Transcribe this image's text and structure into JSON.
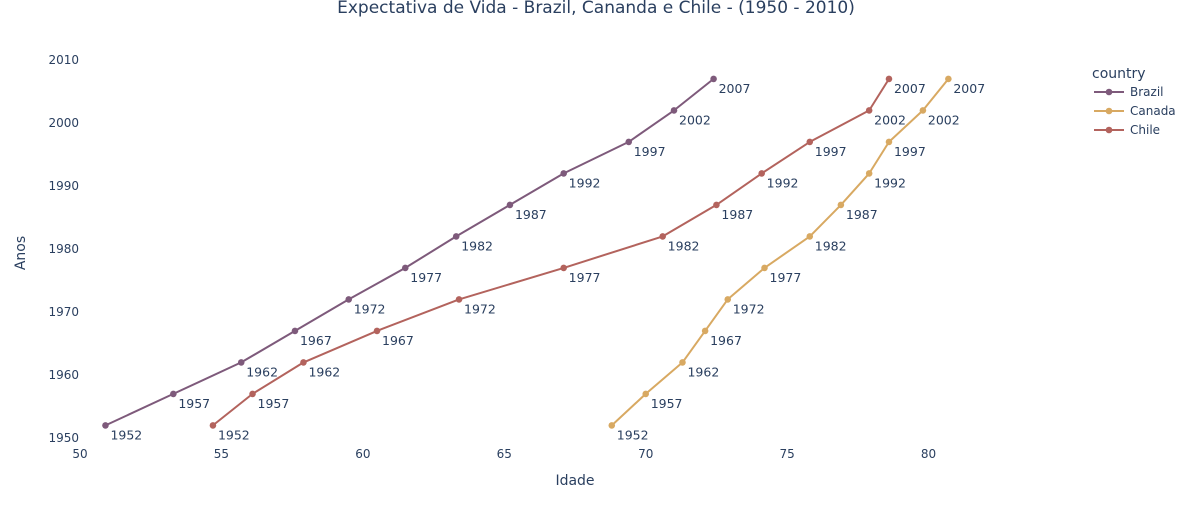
{
  "chart_data": {
    "type": "line",
    "title": "Expectativa de Vida - Brazil, Cananda e Chile - (1950 - 2010)",
    "xlabel": "Idade",
    "ylabel": "Anos",
    "xlim": [
      50,
      85
    ],
    "ylim": [
      1950,
      2010
    ],
    "xticks": [
      "50",
      "55",
      "60",
      "65",
      "70",
      "75",
      "80"
    ],
    "xtick_values": [
      50,
      55,
      60,
      65,
      70,
      75,
      80
    ],
    "yticks": [
      "1950",
      "1960",
      "1970",
      "1980",
      "1990",
      "2000",
      "2010"
    ],
    "ytick_values": [
      1950,
      1960,
      1970,
      1980,
      1990,
      2000,
      2010
    ],
    "grid": false,
    "legend": {
      "title": "country",
      "placement": "top-right"
    },
    "series": [
      {
        "name": "Brazil",
        "color": "#7e5a7b",
        "x": [
          50.9,
          53.3,
          55.7,
          57.6,
          59.5,
          61.5,
          63.3,
          65.2,
          67.1,
          69.4,
          71.0,
          72.4
        ],
        "y": [
          1952,
          1957,
          1962,
          1967,
          1972,
          1977,
          1982,
          1987,
          1992,
          1997,
          2002,
          2007
        ],
        "labels": [
          "1952",
          "1957",
          "1962",
          "1967",
          "1972",
          "1977",
          "1982",
          "1987",
          "1992",
          "1997",
          "2002",
          "2007"
        ]
      },
      {
        "name": "Canada",
        "color": "#d8a962",
        "x": [
          68.8,
          70.0,
          71.3,
          72.1,
          72.9,
          74.2,
          75.8,
          76.9,
          77.9,
          78.6,
          79.8,
          80.7
        ],
        "y": [
          1952,
          1957,
          1962,
          1967,
          1972,
          1977,
          1982,
          1987,
          1992,
          1997,
          2002,
          2007
        ],
        "labels": [
          "1952",
          "1957",
          "1962",
          "1967",
          "1972",
          "1977",
          "1982",
          "1987",
          "1992",
          "1997",
          "2002",
          "2007"
        ]
      },
      {
        "name": "Chile",
        "color": "#b3635d",
        "x": [
          54.7,
          56.1,
          57.9,
          60.5,
          63.4,
          67.1,
          70.6,
          72.5,
          74.1,
          75.8,
          77.9,
          78.6
        ],
        "y": [
          1952,
          1957,
          1962,
          1967,
          1972,
          1977,
          1982,
          1987,
          1992,
          1997,
          2002,
          2007
        ],
        "labels": [
          "1952",
          "1957",
          "1962",
          "1967",
          "1972",
          "1977",
          "1982",
          "1987",
          "1992",
          "1997",
          "2002",
          "2007"
        ]
      }
    ]
  }
}
